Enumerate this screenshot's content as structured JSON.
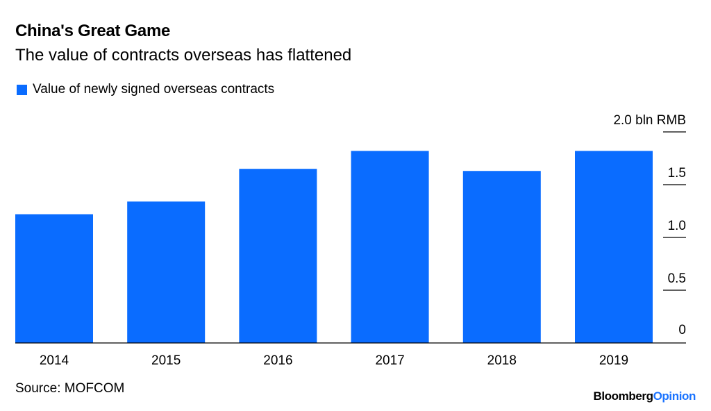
{
  "title": "China's Great Game",
  "subtitle": "The value of contracts overseas has flattened",
  "source": "Source: MOFCOM",
  "brand": {
    "part1": "Bloomberg",
    "part2": "Opinion",
    "accent_color": "#1a73ff"
  },
  "colors": {
    "bar": "#0a6cff",
    "axis": "#000000"
  },
  "chart_data": {
    "type": "bar",
    "categories": [
      "2014",
      "2015",
      "2016",
      "2017",
      "2018",
      "2019"
    ],
    "series": [
      {
        "name": "Value of newly signed overseas contracts",
        "values": [
          1.22,
          1.34,
          1.65,
          1.82,
          1.63,
          1.82
        ]
      }
    ],
    "y_ticks": [
      {
        "value": 0,
        "label": "0"
      },
      {
        "value": 0.5,
        "label": "0.5"
      },
      {
        "value": 1.0,
        "label": "1.0"
      },
      {
        "value": 1.5,
        "label": "1.5"
      },
      {
        "value": 2.0,
        "label": "2.0 bln RMB"
      }
    ],
    "ylim": [
      0,
      2.0
    ],
    "y_axis_position": "right",
    "grid": false,
    "legend_position": "top-left"
  }
}
